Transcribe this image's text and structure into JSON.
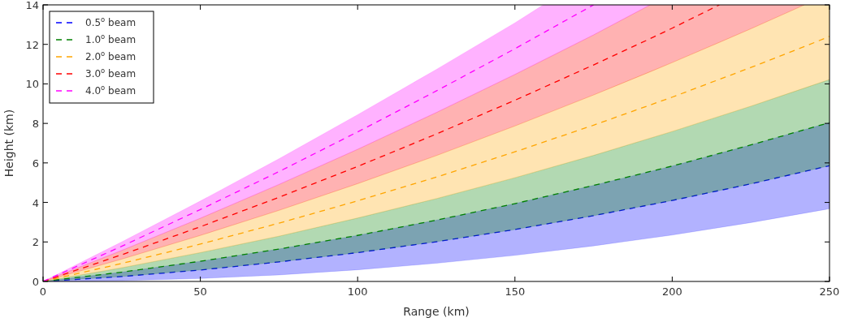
{
  "chart_data": {
    "type": "line",
    "xlabel": "Range (km)",
    "ylabel": "Height (km)",
    "xlim": [
      0,
      250
    ],
    "xticks": [
      0,
      50,
      100,
      150,
      200,
      250
    ],
    "ylim": [
      0,
      14
    ],
    "yticks": [
      0,
      2,
      4,
      6,
      8,
      10,
      12,
      14
    ],
    "grid": false,
    "legend": "top left",
    "line_style": "dashed",
    "series": [
      {
        "name": "0.5$^{o}$ beam",
        "color": "#0000ff",
        "x": [
          0,
          25,
          50,
          75,
          100,
          125,
          150,
          175,
          200,
          225,
          250
        ],
        "values": [
          0,
          0.25,
          0.58,
          0.99,
          1.46,
          2.01,
          2.63,
          3.33,
          4.1,
          4.94,
          5.86
        ],
        "lower": [
          0,
          0.04,
          0.15,
          0.33,
          0.59,
          0.92,
          1.32,
          1.8,
          2.35,
          2.98,
          3.68
        ],
        "upper": [
          0,
          0.47,
          1.02,
          1.64,
          2.33,
          3.1,
          3.94,
          4.86,
          5.84,
          6.91,
          8.04
        ]
      },
      {
        "name": "1.0$^{o}$ beam",
        "color": "#008000",
        "x": [
          0,
          25,
          50,
          75,
          100,
          125,
          150,
          175,
          200,
          225,
          250
        ],
        "values": [
          0,
          0.47,
          1.02,
          1.64,
          2.33,
          3.1,
          3.94,
          4.86,
          5.84,
          6.91,
          8.04
        ],
        "lower": [
          0,
          0.25,
          0.58,
          0.99,
          1.46,
          2.01,
          2.63,
          3.33,
          4.1,
          4.94,
          5.86
        ],
        "upper": [
          0,
          0.69,
          1.46,
          2.29,
          3.21,
          4.19,
          5.25,
          6.38,
          7.59,
          8.87,
          10.22
        ]
      },
      {
        "name": "2.0$^{o}$ beam",
        "color": "#ffa500",
        "x": [
          0,
          25,
          50,
          75,
          100,
          125,
          150,
          175,
          200,
          225,
          242,
          250
        ],
        "values": [
          0,
          0.91,
          1.89,
          2.95,
          4.08,
          5.28,
          6.56,
          7.91,
          9.33,
          10.83,
          11.89,
          12.4
        ],
        "lower": [
          0,
          0.69,
          1.46,
          2.29,
          3.21,
          4.19,
          5.25,
          6.38,
          7.59,
          8.87,
          9.78,
          10.22
        ],
        "upper": [
          0,
          1.13,
          2.33,
          3.6,
          4.95,
          6.37,
          7.87,
          9.44,
          11.08,
          12.79,
          14,
          14
        ]
      },
      {
        "name": "3.0$^{o}$ beam",
        "color": "#ff0000",
        "x": [
          0,
          25,
          50,
          75,
          100,
          125,
          150,
          175,
          193,
          200,
          215,
          225,
          242
        ],
        "values": [
          0,
          1.35,
          2.77,
          4.26,
          5.82,
          7.46,
          9.17,
          10.96,
          12.29,
          12.82,
          14,
          null,
          null
        ],
        "lower": [
          0,
          1.13,
          2.33,
          3.6,
          4.95,
          6.37,
          7.87,
          9.44,
          10.61,
          11.08,
          12.1,
          12.79,
          14
        ],
        "upper": [
          0,
          1.57,
          3.2,
          4.91,
          6.69,
          8.55,
          10.48,
          12.48,
          14,
          14,
          14,
          14,
          14
        ]
      },
      {
        "name": "4.0$^{o}$ beam",
        "color": "#ff00ff",
        "x": [
          0,
          25,
          50,
          75,
          100,
          125,
          150,
          159,
          175,
          193
        ],
        "values": [
          0,
          1.78,
          3.64,
          5.56,
          7.57,
          9.64,
          11.78,
          12.58,
          14,
          null
        ],
        "lower": [
          0,
          1.57,
          3.2,
          4.91,
          6.69,
          8.55,
          10.48,
          11.2,
          12.48,
          14
        ],
        "upper": [
          0,
          2.0,
          4.07,
          6.21,
          8.44,
          10.73,
          13.09,
          14,
          14,
          14
        ]
      }
    ]
  }
}
